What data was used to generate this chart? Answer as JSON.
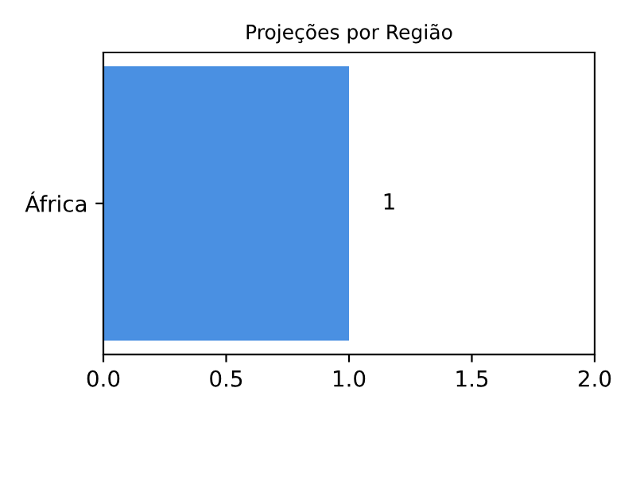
{
  "chart_data": {
    "type": "bar",
    "orientation": "horizontal",
    "title": "Projeções por Região",
    "categories": [
      "África"
    ],
    "values": [
      1
    ],
    "color": "#4a90e2",
    "data_labels": true,
    "xlim": [
      0,
      2
    ],
    "xticks": [
      {
        "value": 0,
        "label": "0.0"
      },
      {
        "value": 0.5,
        "label": "0.5"
      },
      {
        "value": 1,
        "label": "1.0"
      },
      {
        "value": 1.5,
        "label": "1.5"
      },
      {
        "value": 2,
        "label": "2.0"
      }
    ],
    "grid": false,
    "legend": false
  }
}
